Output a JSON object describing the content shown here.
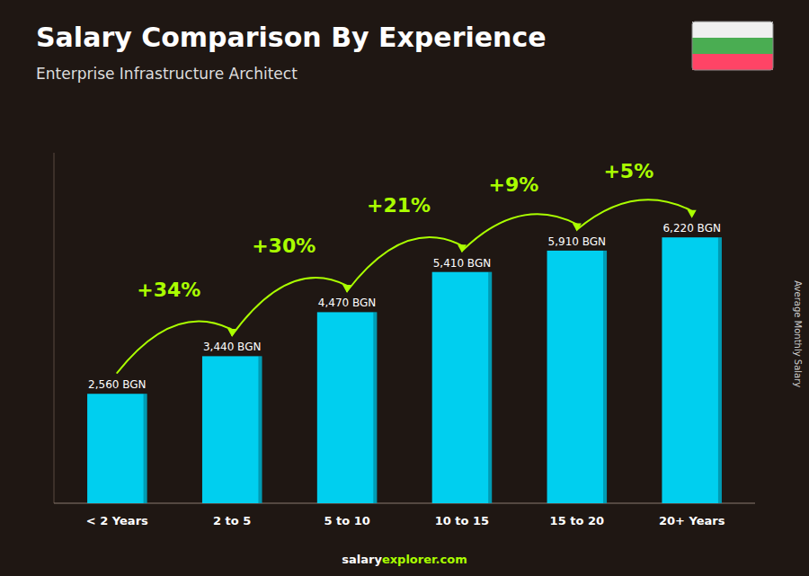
{
  "chart_data": {
    "type": "bar",
    "title": "Salary Comparison By Experience",
    "subtitle": "Enterprise Infrastructure Architect",
    "ylabel": "Average Monthly Salary",
    "categories": [
      "< 2 Years",
      "2 to 5",
      "5 to 10",
      "10 to 15",
      "15 to 20",
      "20+ Years"
    ],
    "values": [
      2560,
      3440,
      4470,
      5410,
      5910,
      6220
    ],
    "value_labels": [
      "2,560 BGN",
      "3,440 BGN",
      "4,470 BGN",
      "5,410 BGN",
      "5,910 BGN",
      "6,220 BGN"
    ],
    "data_labels": true,
    "color": "#00CFEF",
    "ylim": [
      0,
      8200
    ],
    "tick_labels": "x",
    "grid": false,
    "annotations": [
      "+34%",
      "+30%",
      "+21%",
      "+9%",
      "+5%"
    ],
    "watermark": [
      "salary",
      "explorer.com"
    ]
  }
}
